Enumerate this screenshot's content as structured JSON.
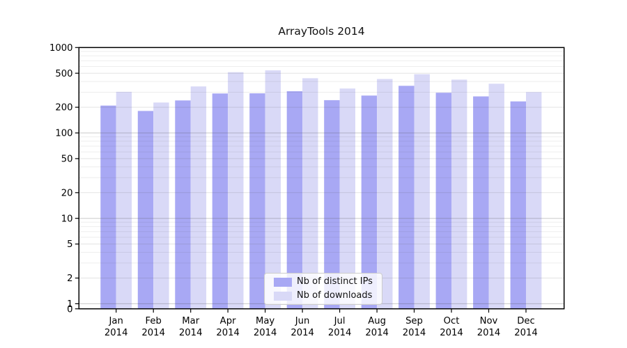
{
  "chart_data": {
    "type": "bar",
    "title": "ArrayTools 2014",
    "categories": [
      "Jan 2014",
      "Feb 2014",
      "Mar 2014",
      "Apr 2014",
      "May 2014",
      "Jun 2014",
      "Jul 2014",
      "Aug 2014",
      "Sep 2014",
      "Oct 2014",
      "Nov 2014",
      "Dec 2014"
    ],
    "series": [
      {
        "name": "Nb of distinct IPs",
        "color": "#a8a8f4",
        "values": [
          209,
          181,
          240,
          290,
          291,
          308,
          242,
          274,
          356,
          296,
          268,
          234
        ]
      },
      {
        "name": "Nb of downloads",
        "color": "#d9d9f7",
        "values": [
          303,
          227,
          350,
          515,
          540,
          437,
          331,
          428,
          487,
          421,
          377,
          301
        ]
      }
    ],
    "xlabel": "",
    "ylabel": "",
    "yscale": "log",
    "ylim": [
      0,
      1000
    ],
    "y_ticks": [
      1000,
      500,
      200,
      100,
      50,
      20,
      10,
      5,
      2,
      1,
      0
    ],
    "grid": "horizontal major+minor",
    "legend_position": "lower center"
  }
}
